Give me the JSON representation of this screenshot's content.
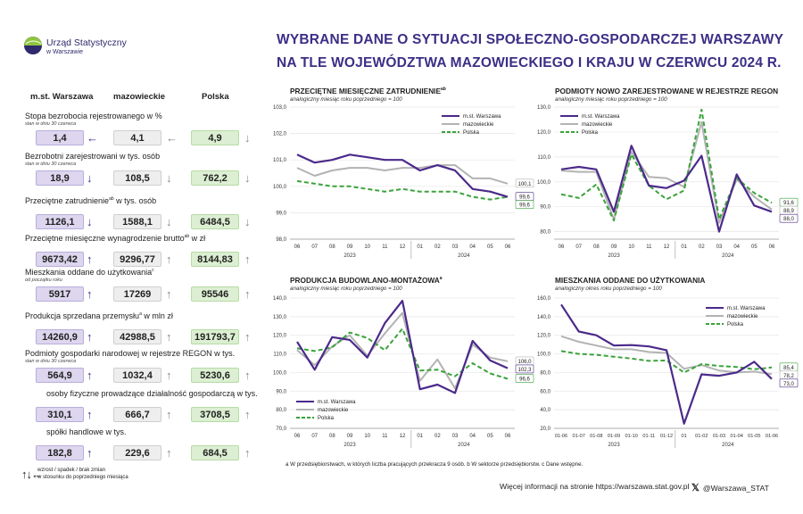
{
  "logo": {
    "name": "Urząd Statystyczny",
    "sub": "w Warszawie"
  },
  "title": {
    "line1": "WYBRANE DANE O SYTUACJI SPOŁECZNO-GOSPODARCZEJ WARSZAWY",
    "line2": "NA TLE WOJEWÓDZTWA MAZOWIECKIEGO I KRAJU W CZERWCU 2024 R."
  },
  "colors": {
    "warszawa": "#4b2a8a",
    "mazowieckie": "#b3b3b3",
    "polska": "#3aa33a",
    "title": "#3b2f86"
  },
  "columns": [
    "m.st. Warszawa",
    "mazowieckie",
    "Polska"
  ],
  "indicators": [
    {
      "label": "Stopa bezrobocia rejestrowanego w %",
      "sub": "stan w dniu 30 czerwca",
      "values": [
        "1,4",
        "4,1",
        "4,9"
      ],
      "arrows": [
        "←",
        "←",
        "↓"
      ]
    },
    {
      "label": "Bezrobotni zarejestrowani w tys. osób",
      "sub": "stan w dniu 30 czerwca",
      "values": [
        "18,9",
        "108,5",
        "762,2"
      ],
      "arrows": [
        "↓",
        "↓",
        "↓"
      ]
    },
    {
      "label": "Przeciętne zatrudnienie",
      "sup": "ab",
      "label2": " w tys. osób",
      "sub": "",
      "values": [
        "1126,1",
        "1588,1",
        "6484,5"
      ],
      "arrows": [
        "↓",
        "↓",
        "↓"
      ]
    },
    {
      "label": "Przeciętne miesięczne wynagrodzenie brutto",
      "sup": "ab",
      "label2": " w zł",
      "sub": "",
      "values": [
        "9673,42",
        "9296,77",
        "8144,83"
      ],
      "arrows": [
        "↑",
        "↑",
        "↑"
      ]
    },
    {
      "label": "Mieszkania oddane do użytkowania",
      "sup": "c",
      "label2": "",
      "sub": "od początku roku",
      "values": [
        "5917",
        "17269",
        "95546"
      ],
      "arrows": [
        "↑",
        "↑",
        "↑"
      ]
    },
    {
      "label": "Produkcja sprzedana przemysłu",
      "sup": "a",
      "label2": " w mln zł",
      "sub": "",
      "values": [
        "14260,9",
        "42988,5",
        "191793,7"
      ],
      "arrows": [
        "↑",
        "↑",
        "↑"
      ]
    },
    {
      "label": "Podmioty gospodarki narodowej w rejestrze REGON w tys.",
      "sub": "stan w dniu 30 czerwca",
      "values": [
        "564,9",
        "1032,4",
        "5230,6"
      ],
      "arrows": [
        "↑",
        "↑",
        "↑"
      ]
    },
    {
      "label": "osoby fizyczne prowadzące działalność gospodarczą w tys.",
      "sub": "",
      "values": [
        "310,1",
        "666,7",
        "3708,5"
      ],
      "arrows": [
        "↑",
        "↑",
        "↑"
      ]
    },
    {
      "label": "spółki handlowe w tys.",
      "sub": "",
      "values": [
        "182,8",
        "229,6",
        "684,5"
      ],
      "arrows": [
        "↑",
        "↑",
        "↑"
      ]
    }
  ],
  "legend_note": {
    "arrows": "↑↓←",
    "line1": "wzrost / spadek / brak zmian",
    "line2": "w stosunku do poprzedniego miesiąca"
  },
  "notes": "a W przedsiębiorstwach, w których liczba pracujących przekracza 9 osób.  b W sektorze przedsiębiorstw.  c Dane wstępne.",
  "more_info": "Więcej informacji na stronie https://warszawa.stat.gov.pl",
  "twitter": "@Warszawa_STAT",
  "chart_data": [
    {
      "type": "line",
      "title": "PRZECIĘTNE MIESIĘCZNE ZATRUDNIENIE",
      "title_sup": "ab",
      "subtitle": "analogiczny miesiąc roku poprzedniego = 100",
      "x": [
        "06",
        "07",
        "08",
        "09",
        "10",
        "11",
        "12",
        "01",
        "02",
        "03",
        "04",
        "05",
        "06"
      ],
      "year_labels": [
        "2023",
        "2024"
      ],
      "ylim": [
        98.0,
        103.0
      ],
      "yticks": [
        "98,0",
        "99,0",
        "100,0",
        "101,0",
        "102,0",
        "103,0"
      ],
      "legend_position": "top-right",
      "series": [
        {
          "name": "m.st. Warszawa",
          "color": "#4b2a8a",
          "values": [
            101.2,
            100.9,
            101.0,
            101.2,
            101.1,
            101.0,
            101.0,
            100.6,
            100.8,
            100.6,
            99.9,
            99.8,
            99.6
          ]
        },
        {
          "name": "mazowieckie",
          "color": "#b3b3b3",
          "values": [
            100.7,
            100.4,
            100.6,
            100.7,
            100.7,
            100.6,
            100.7,
            100.7,
            100.8,
            100.8,
            100.3,
            100.3,
            100.1
          ]
        },
        {
          "name": "Polska",
          "color": "#3aa33a",
          "dashed": true,
          "values": [
            100.2,
            100.1,
            100.0,
            100.0,
            99.9,
            99.8,
            99.9,
            99.8,
            99.8,
            99.8,
            99.6,
            99.5,
            99.6
          ]
        }
      ],
      "end_labels": [
        "100,1",
        "99,6",
        "99,6"
      ]
    },
    {
      "type": "line",
      "title": "PODMIOTY NOWO ZAREJESTROWANE W REJESTRZE REGON",
      "subtitle": "analogiczny miesiąc roku poprzedniego = 100",
      "x": [
        "06",
        "07",
        "08",
        "09",
        "10",
        "11",
        "12",
        "01",
        "02",
        "03",
        "04",
        "05",
        "06"
      ],
      "year_labels": [
        "2023",
        "2024"
      ],
      "ylim": [
        77.0,
        130.0
      ],
      "yticks": [
        "80,0",
        "90,0",
        "100,0",
        "110,0",
        "120,0",
        "130,0"
      ],
      "legend_position": "top-left",
      "series": [
        {
          "name": "m.st. Warszawa",
          "color": "#4b2a8a",
          "values": [
            105.0,
            106.0,
            105.0,
            88.0,
            114.5,
            98.5,
            97.5,
            100.5,
            110.5,
            80.0,
            103.0,
            90.5,
            88.0
          ]
        },
        {
          "name": "mazowieckie",
          "color": "#b3b3b3",
          "values": [
            104.5,
            104.0,
            104.0,
            85.0,
            112.0,
            102.0,
            101.5,
            98.0,
            124.0,
            83.5,
            101.0,
            94.0,
            88.9
          ]
        },
        {
          "name": "Polska",
          "color": "#3aa33a",
          "dashed": true,
          "values": [
            95.0,
            93.5,
            99.0,
            84.5,
            111.0,
            98.5,
            93.0,
            96.5,
            129.0,
            85.0,
            101.5,
            95.5,
            91.6
          ]
        }
      ],
      "end_labels": [
        "91,6",
        "88,9",
        "88,0"
      ]
    },
    {
      "type": "line",
      "title": "PRODUKCJA BUDOWLANO-MONTAŻOWA",
      "title_sup": "a",
      "subtitle": "analogiczny miesiąc roku poprzedniego = 100",
      "x": [
        "06",
        "07",
        "08",
        "09",
        "10",
        "11",
        "12",
        "01",
        "02",
        "03",
        "04",
        "05",
        "06"
      ],
      "year_labels": [
        "2023",
        "2024"
      ],
      "ylim": [
        70.0,
        140.0
      ],
      "yticks": [
        "70,0",
        "80,0",
        "90,0",
        "100,0",
        "110,0",
        "120,0",
        "130,0",
        "140,0"
      ],
      "legend_position": "bottom-left",
      "series": [
        {
          "name": "m.st. Warszawa",
          "color": "#4b2a8a",
          "values": [
            116.5,
            101.5,
            119.0,
            117.5,
            108.0,
            126.5,
            138.5,
            91.0,
            93.5,
            89.0,
            117.0,
            106.5,
            102.3
          ]
        },
        {
          "name": "mazowieckie",
          "color": "#b3b3b3",
          "values": [
            112.0,
            104.0,
            114.0,
            120.0,
            109.0,
            121.0,
            132.0,
            95.5,
            107.0,
            91.5,
            115.0,
            108.0,
            106.0
          ]
        },
        {
          "name": "Polska",
          "color": "#3aa33a",
          "dashed": true,
          "values": [
            113.0,
            111.5,
            113.5,
            121.5,
            118.5,
            112.0,
            123.5,
            101.0,
            101.5,
            98.0,
            105.0,
            99.5,
            96.6
          ]
        }
      ],
      "end_labels": [
        "106,0",
        "102,3",
        "96,6"
      ]
    },
    {
      "type": "line",
      "title": "MIESZKANIA ODDANE DO UŻYTKOWANIA",
      "subtitle": "analogiczny okres roku poprzedniego = 100",
      "x": [
        "01-06",
        "01-07",
        "01-08",
        "01-09",
        "01-10",
        "01-11",
        "01-12",
        "01",
        "01-02",
        "01-03",
        "01-04",
        "01-05",
        "01-06"
      ],
      "year_labels": [
        "2023",
        "2024"
      ],
      "ylim": [
        20.0,
        160.0
      ],
      "yticks": [
        "20,0",
        "40,0",
        "60,0",
        "80,0",
        "100,0",
        "120,0",
        "140,0",
        "160,0"
      ],
      "legend_position": "top-right",
      "series": [
        {
          "name": "m.st. Warszawa",
          "color": "#4b2a8a",
          "values": [
            153.0,
            124.0,
            120.0,
            109.0,
            109.5,
            108.0,
            104.0,
            25.0,
            78.0,
            76.5,
            80.0,
            91.5,
            73.0
          ]
        },
        {
          "name": "mazowieckie",
          "color": "#b3b3b3",
          "values": [
            119.0,
            113.0,
            109.0,
            105.0,
            105.0,
            102.0,
            101.0,
            84.0,
            88.0,
            82.0,
            80.0,
            81.0,
            78.2
          ]
        },
        {
          "name": "Polska",
          "color": "#3aa33a",
          "dashed": true,
          "values": [
            103.0,
            100.0,
            99.0,
            97.0,
            95.0,
            92.5,
            93.0,
            80.0,
            89.0,
            87.0,
            86.0,
            83.5,
            85.4
          ]
        }
      ],
      "end_labels": [
        "85,4",
        "78,2",
        "73,0"
      ]
    }
  ]
}
